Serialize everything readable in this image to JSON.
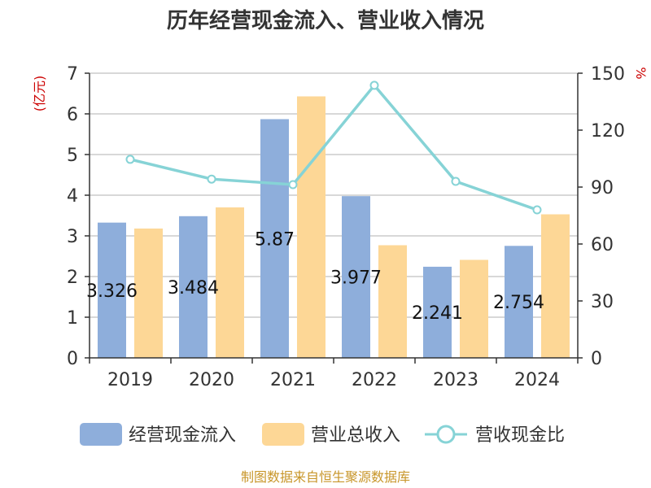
{
  "chart_data": {
    "type": "bar",
    "title": "历年经营现金流入、营业收入情况",
    "categories": [
      "2019",
      "2020",
      "2021",
      "2022",
      "2023",
      "2024"
    ],
    "y_left": {
      "unit": "(亿元)",
      "ylim": [
        0,
        7
      ],
      "ticks": [
        0,
        1,
        2,
        3,
        4,
        5,
        6,
        7
      ]
    },
    "y_right": {
      "unit": "%",
      "ylim": [
        0,
        150
      ],
      "ticks": [
        0,
        30,
        60,
        90,
        120,
        150
      ]
    },
    "series": [
      {
        "name": "经营现金流入",
        "type": "bar",
        "axis": "left",
        "color": "#8eaedb",
        "values": [
          3.326,
          3.484,
          5.87,
          3.977,
          2.241,
          2.754
        ],
        "labels": [
          "3.326",
          "3.484",
          "5.87",
          "3.977",
          "2.241",
          "2.754"
        ]
      },
      {
        "name": "营业总收入",
        "type": "bar",
        "axis": "left",
        "color": "#fdd796",
        "values": [
          3.18,
          3.7,
          6.43,
          2.77,
          2.41,
          3.53
        ]
      },
      {
        "name": "营收现金比",
        "type": "line",
        "axis": "right",
        "color": "#86d3d6",
        "values": [
          104.6,
          94.2,
          91.3,
          143.6,
          93.0,
          78.0
        ]
      }
    ],
    "grid": true,
    "legend": "bottom"
  },
  "footer": {
    "source": "制图数据来自恒生聚源数据库"
  }
}
